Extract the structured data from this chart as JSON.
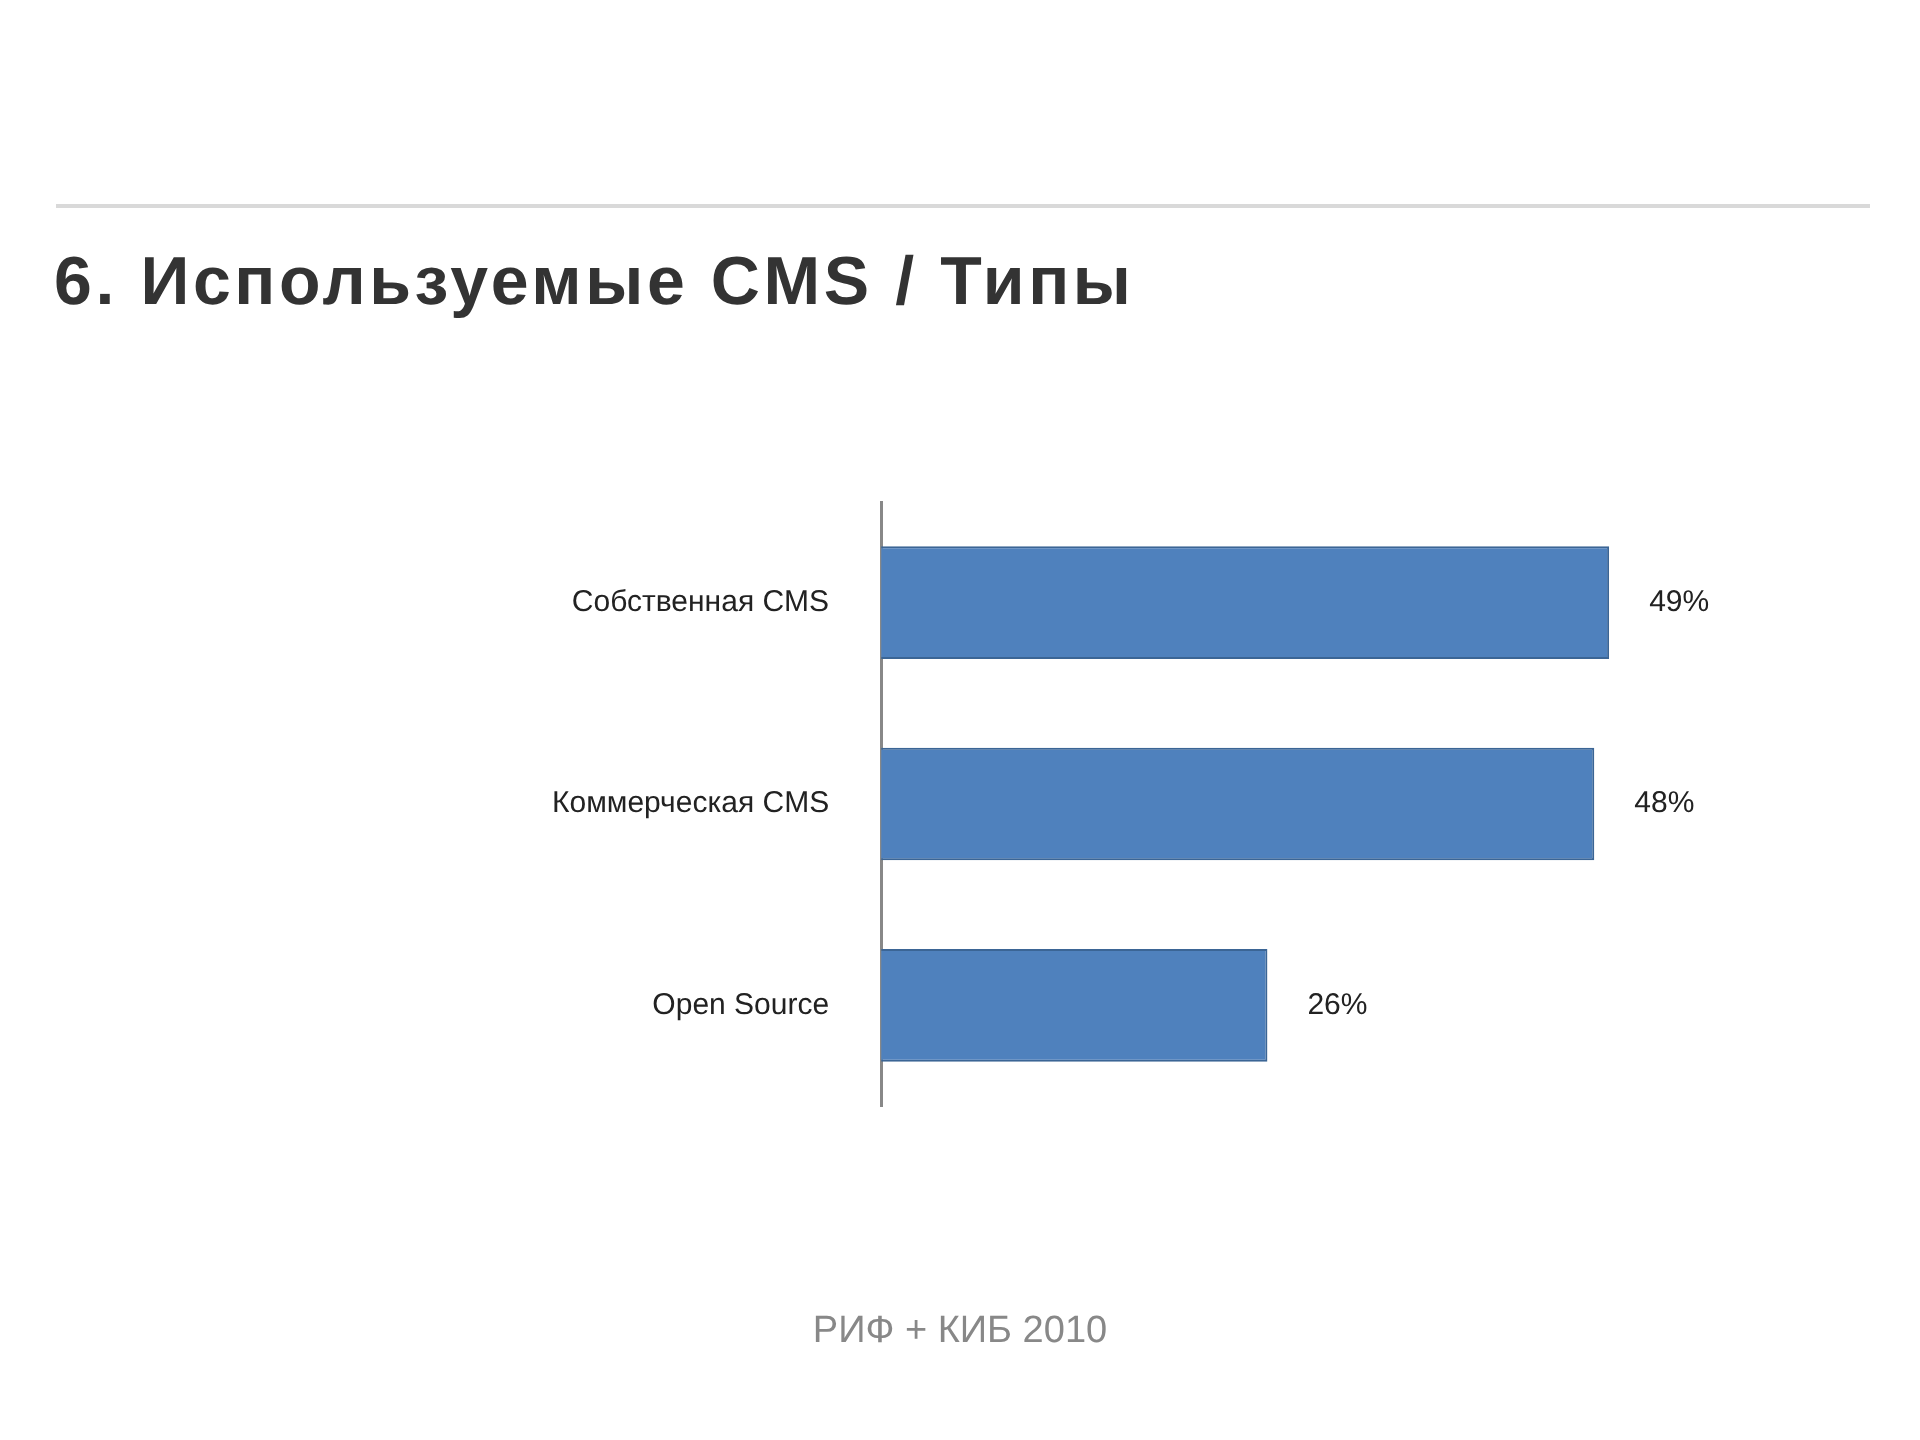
{
  "chart_data": {
    "type": "bar",
    "orientation": "horizontal",
    "title": "6. Используемые CMS / Типы",
    "categories": [
      "Собственная CMS",
      "Коммерческая CMS",
      "Open Source"
    ],
    "values": [
      49,
      48,
      26
    ],
    "value_labels": [
      "49%",
      "48%",
      "26%"
    ],
    "color": "#4f81bd",
    "annotations": [
      "РИФ + КИБ 2010"
    ]
  }
}
